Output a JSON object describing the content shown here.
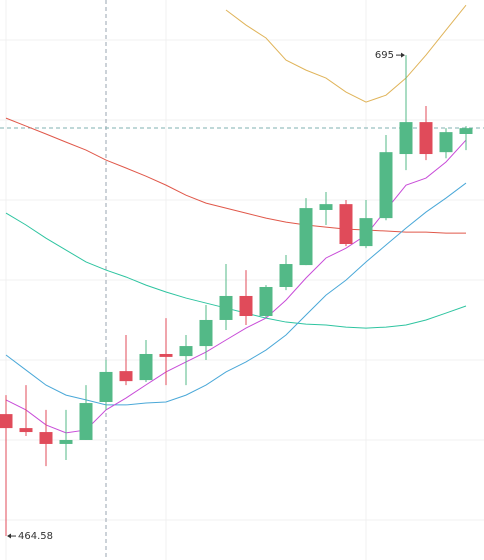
{
  "chart_data": {
    "type": "candlestick",
    "open": [
      523.0,
      516.3,
      514.4,
      508.7,
      510.6,
      528.8,
      543.6,
      539.3,
      551.8,
      550.8,
      555.6,
      568.1,
      579.6,
      570.0,
      583.9,
      594.4,
      620.8,
      623.6,
      603.5,
      616.9,
      647.6,
      662.9,
      648.5,
      657.2
    ],
    "high": [
      532.1,
      536.9,
      525.0,
      525.0,
      536.9,
      548.9,
      560.9,
      558.5,
      569.0,
      560.9,
      575.3,
      594.9,
      592.0,
      584.8,
      599.2,
      626.5,
      629.4,
      625.6,
      625.6,
      656.7,
      695,
      670.6,
      660.0,
      661.0
    ],
    "low": [
      464.58,
      512.5,
      498.1,
      501.0,
      510.6,
      525.0,
      536.9,
      538.4,
      536.9,
      536.9,
      548.9,
      563.3,
      565.7,
      569.0,
      582.4,
      594.4,
      613.6,
      603.5,
      602.5,
      615.9,
      639.9,
      644.7,
      645.6,
      649.5
    ],
    "close": [
      516.3,
      514.4,
      508.7,
      510.6,
      528.3,
      543.2,
      538.8,
      551.8,
      550.4,
      555.6,
      568.1,
      579.6,
      570.0,
      583.9,
      594.9,
      621.7,
      623.6,
      604.5,
      616.9,
      648.5,
      662.9,
      647.6,
      658.1,
      660.0
    ],
    "up_color": "#53b987",
    "down_color": "#e04b5a",
    "lines": [
      {
        "color": "#e0b45a",
        "values": [
          null,
          null,
          null,
          null,
          null,
          null,
          null,
          null,
          null,
          null,
          null,
          716.6,
          709.4,
          703.2,
          692.6,
          687.8,
          684.0,
          677.3,
          672.5,
          675.8,
          684.0,
          695.0,
          707.0,
          718.9
        ]
      },
      {
        "color": "#e0584a",
        "values": [
          664.8,
          661.0,
          657.2,
          653.3,
          649.5,
          644.7,
          640.9,
          637.0,
          632.7,
          627.9,
          624.1,
          621.7,
          619.3,
          616.9,
          615.0,
          613.6,
          612.6,
          611.6,
          611.2,
          610.7,
          610.2,
          610.2,
          609.7,
          609.7
        ]
      },
      {
        "color": "#2ec4a0",
        "values": [
          619.3,
          613.6,
          607.3,
          601.6,
          595.9,
          592.0,
          588.7,
          584.8,
          581.5,
          578.6,
          576.2,
          573.8,
          571.4,
          569.0,
          567.1,
          566.1,
          565.7,
          564.7,
          564.2,
          564.7,
          565.7,
          568.1,
          571.4,
          574.8
        ]
      },
      {
        "color": "#4aa8d8",
        "values": [
          551.3,
          544.1,
          536.9,
          532.1,
          529.8,
          527.4,
          527.4,
          528.3,
          528.8,
          532.1,
          536.9,
          543.2,
          548.0,
          553.7,
          560.9,
          570.5,
          580.0,
          587.2,
          595.9,
          604.0,
          612.1,
          619.8,
          626.5,
          633.7
        ]
      },
      {
        "color": "#c84cd8",
        "values": [
          529.8,
          525.0,
          517.8,
          514.0,
          515.4,
          525.0,
          530.7,
          537.0,
          543.2,
          548.0,
          552.7,
          558.5,
          564.2,
          569.0,
          577.6,
          588.2,
          597.8,
          602.5,
          608.8,
          620.8,
          632.7,
          636.1,
          643.8,
          654.3
        ]
      }
    ],
    "ylim": [
      453.1,
      721.4
    ]
  }
}
